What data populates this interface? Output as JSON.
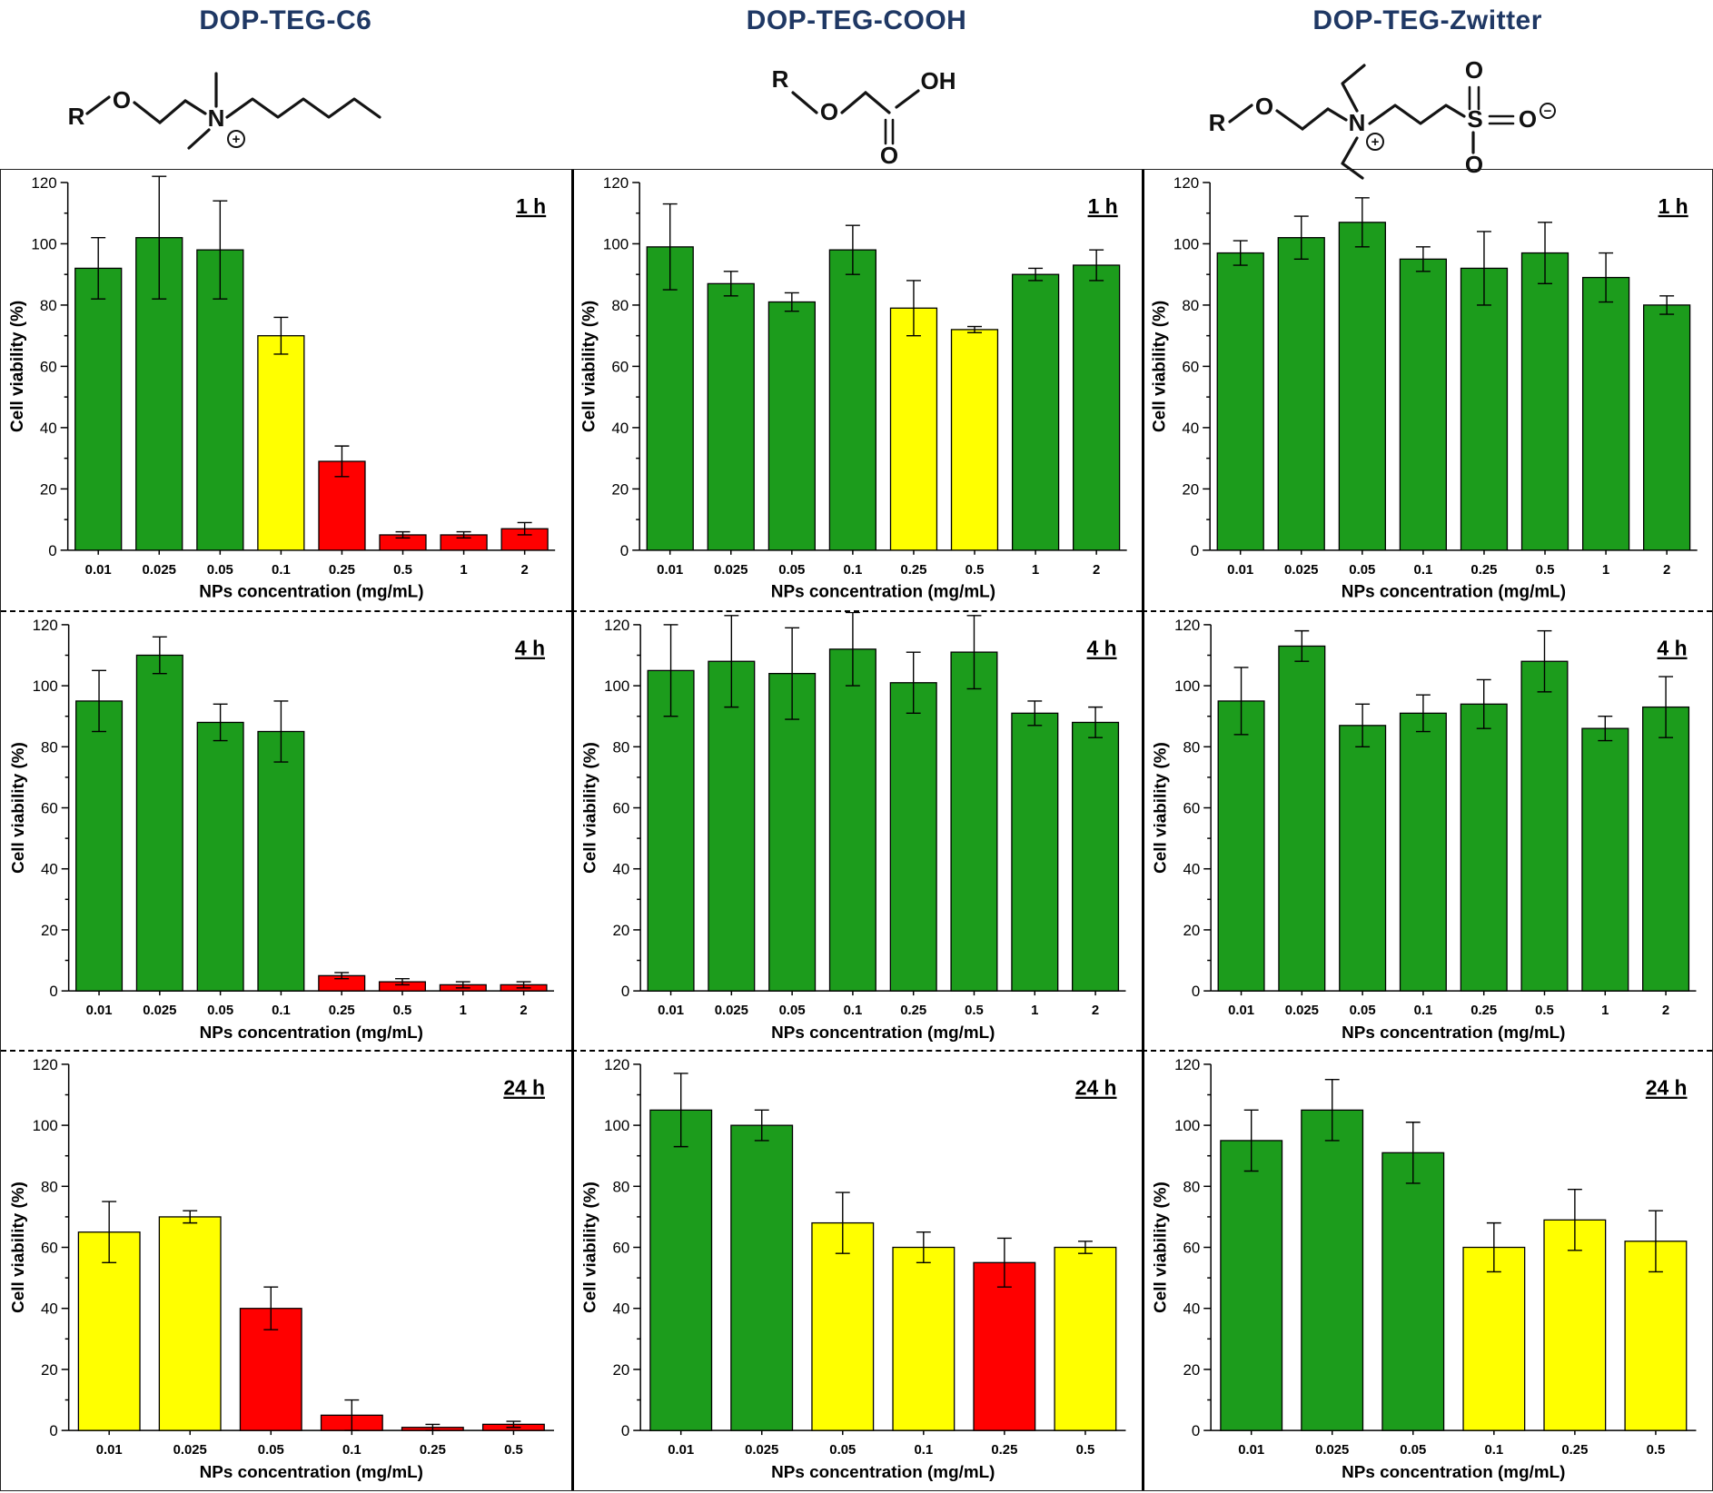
{
  "header": {
    "title_color": "#1F3864",
    "columns": [
      {
        "title": "DOP-TEG-C6"
      },
      {
        "title": "DOP-TEG-COOH"
      },
      {
        "title": "DOP-TEG-Zwitter"
      }
    ]
  },
  "structures": [
    {
      "labels": {
        "r": "R",
        "o": "O",
        "n": "N",
        "plus": "+"
      }
    },
    {
      "labels": {
        "r": "R",
        "o": "O",
        "o2": "O",
        "oh": "OH"
      }
    },
    {
      "labels": {
        "r": "R",
        "o": "O",
        "n": "N",
        "plus": "+",
        "s": "S",
        "o_top": "O",
        "o_right": "O",
        "o_bottom": "O",
        "minus": "−"
      }
    }
  ],
  "axes": {
    "xlabel": "NPs concentration (mg/mL)",
    "ylabel": "Cell viability (%)",
    "ylim": [
      0,
      120
    ],
    "yticks": [
      0,
      20,
      40,
      60,
      80,
      100,
      120
    ]
  },
  "colors": {
    "green": "#1C9C1C",
    "yellow": "#FFFF00",
    "red": "#FF0000",
    "bar_edge": "#000000"
  },
  "chart_data": [
    {
      "type": "bar",
      "compound": "DOP-TEG-C6",
      "timepoint": "1 h",
      "categories": [
        "0.01",
        "0.025",
        "0.05",
        "0.1",
        "0.25",
        "0.5",
        "1",
        "2"
      ],
      "values": [
        92,
        102,
        98,
        70,
        29,
        5,
        5,
        7
      ],
      "errors": [
        10,
        20,
        16,
        6,
        5,
        1,
        1,
        2
      ],
      "bar_colors": [
        "green",
        "green",
        "green",
        "yellow",
        "red",
        "red",
        "red",
        "red"
      ],
      "xlabel": "NPs concentration (mg/mL)",
      "ylabel": "Cell viability (%)",
      "ylim": [
        0,
        120
      ]
    },
    {
      "type": "bar",
      "compound": "DOP-TEG-COOH",
      "timepoint": "1 h",
      "categories": [
        "0.01",
        "0.025",
        "0.05",
        "0.1",
        "0.25",
        "0.5",
        "1",
        "2"
      ],
      "values": [
        99,
        87,
        81,
        98,
        79,
        72,
        90,
        93
      ],
      "errors": [
        14,
        4,
        3,
        8,
        9,
        1,
        2,
        5
      ],
      "bar_colors": [
        "green",
        "green",
        "green",
        "green",
        "yellow",
        "yellow",
        "green",
        "green"
      ],
      "xlabel": "NPs concentration (mg/mL)",
      "ylabel": "Cell viability (%)",
      "ylim": [
        0,
        120
      ]
    },
    {
      "type": "bar",
      "compound": "DOP-TEG-Zwitter",
      "timepoint": "1 h",
      "categories": [
        "0.01",
        "0.025",
        "0.05",
        "0.1",
        "0.25",
        "0.5",
        "1",
        "2"
      ],
      "values": [
        97,
        102,
        107,
        95,
        92,
        97,
        89,
        80
      ],
      "errors": [
        4,
        7,
        8,
        4,
        12,
        10,
        8,
        3
      ],
      "bar_colors": [
        "green",
        "green",
        "green",
        "green",
        "green",
        "green",
        "green",
        "green"
      ],
      "xlabel": "NPs concentration (mg/mL)",
      "ylabel": "Cell viability (%)",
      "ylim": [
        0,
        120
      ]
    },
    {
      "type": "bar",
      "compound": "DOP-TEG-C6",
      "timepoint": "4 h",
      "categories": [
        "0.01",
        "0.025",
        "0.05",
        "0.1",
        "0.25",
        "0.5",
        "1",
        "2"
      ],
      "values": [
        95,
        110,
        88,
        85,
        5,
        3,
        2,
        2
      ],
      "errors": [
        10,
        6,
        6,
        10,
        1,
        1,
        1,
        1
      ],
      "bar_colors": [
        "green",
        "green",
        "green",
        "green",
        "red",
        "red",
        "red",
        "red"
      ],
      "xlabel": "NPs concentration (mg/mL)",
      "ylabel": "Cell viability (%)",
      "ylim": [
        0,
        120
      ]
    },
    {
      "type": "bar",
      "compound": "DOP-TEG-COOH",
      "timepoint": "4 h",
      "categories": [
        "0.01",
        "0.025",
        "0.05",
        "0.1",
        "0.25",
        "0.5",
        "1",
        "2"
      ],
      "values": [
        105,
        108,
        104,
        112,
        101,
        111,
        91,
        88
      ],
      "errors": [
        15,
        15,
        15,
        12,
        10,
        12,
        4,
        5
      ],
      "bar_colors": [
        "green",
        "green",
        "green",
        "green",
        "green",
        "green",
        "green",
        "green"
      ],
      "xlabel": "NPs concentration (mg/mL)",
      "ylabel": "Cell viability (%)",
      "ylim": [
        0,
        120
      ]
    },
    {
      "type": "bar",
      "compound": "DOP-TEG-Zwitter",
      "timepoint": "4 h",
      "categories": [
        "0.01",
        "0.025",
        "0.05",
        "0.1",
        "0.25",
        "0.5",
        "1",
        "2"
      ],
      "values": [
        95,
        113,
        87,
        91,
        94,
        108,
        86,
        93
      ],
      "errors": [
        11,
        5,
        7,
        6,
        8,
        10,
        4,
        10
      ],
      "bar_colors": [
        "green",
        "green",
        "green",
        "green",
        "green",
        "green",
        "green",
        "green"
      ],
      "xlabel": "NPs concentration (mg/mL)",
      "ylabel": "Cell viability (%)",
      "ylim": [
        0,
        120
      ]
    },
    {
      "type": "bar",
      "compound": "DOP-TEG-C6",
      "timepoint": "24 h",
      "categories": [
        "0.01",
        "0.025",
        "0.05",
        "0.1",
        "0.25",
        "0.5"
      ],
      "values": [
        65,
        70,
        40,
        5,
        1,
        2
      ],
      "errors": [
        10,
        2,
        7,
        5,
        1,
        1
      ],
      "bar_colors": [
        "yellow",
        "yellow",
        "red",
        "red",
        "red",
        "red"
      ],
      "xlabel": "NPs concentration (mg/mL)",
      "ylabel": "Cell viability (%)",
      "ylim": [
        0,
        120
      ]
    },
    {
      "type": "bar",
      "compound": "DOP-TEG-COOH",
      "timepoint": "24 h",
      "categories": [
        "0.01",
        "0.025",
        "0.05",
        "0.1",
        "0.25",
        "0.5"
      ],
      "values": [
        105,
        100,
        68,
        60,
        55,
        60
      ],
      "errors": [
        12,
        5,
        10,
        5,
        8,
        2
      ],
      "bar_colors": [
        "green",
        "green",
        "yellow",
        "yellow",
        "red",
        "yellow"
      ],
      "xlabel": "NPs concentration (mg/mL)",
      "ylabel": "Cell viability (%)",
      "ylim": [
        0,
        120
      ]
    },
    {
      "type": "bar",
      "compound": "DOP-TEG-Zwitter",
      "timepoint": "24 h",
      "categories": [
        "0.01",
        "0.025",
        "0.05",
        "0.1",
        "0.25",
        "0.5"
      ],
      "values": [
        95,
        105,
        91,
        60,
        69,
        62
      ],
      "errors": [
        10,
        10,
        10,
        8,
        10,
        10
      ],
      "bar_colors": [
        "green",
        "green",
        "green",
        "yellow",
        "yellow",
        "yellow"
      ],
      "xlabel": "NPs concentration (mg/mL)",
      "ylabel": "Cell viability (%)",
      "ylim": [
        0,
        120
      ]
    }
  ]
}
